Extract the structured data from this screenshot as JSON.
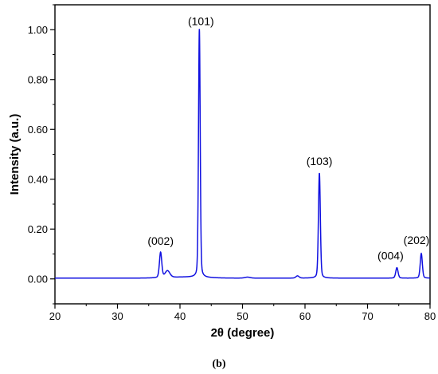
{
  "caption": "(b)",
  "chart_data": {
    "type": "line",
    "xlabel": "2θ (degree)",
    "ylabel": "Intensity (a.u.)",
    "xlim": [
      20,
      80
    ],
    "ylim": [
      -0.1,
      1.1
    ],
    "x_ticks": [
      20,
      30,
      40,
      50,
      60,
      70,
      80
    ],
    "x_tick_labels": [
      "20",
      "30",
      "40",
      "50",
      "60",
      "70",
      "80"
    ],
    "y_ticks": [
      0,
      0.2,
      0.4,
      0.6,
      0.8,
      1.0
    ],
    "y_tick_labels": [
      "0.00",
      "0.20",
      "0.40",
      "0.60",
      "0.80",
      "1.00"
    ],
    "grid": false,
    "legend": "none",
    "series_color": "#1010e0",
    "baseline": 0.003,
    "peaks": [
      {
        "x": 36.9,
        "y": 0.105,
        "label": "(002)"
      },
      {
        "x": 38.0,
        "y": 0.03,
        "label": ""
      },
      {
        "x": 43.1,
        "y": 1.0,
        "label": "(101)"
      },
      {
        "x": 50.8,
        "y": 0.007,
        "label": ""
      },
      {
        "x": 58.8,
        "y": 0.012,
        "label": ""
      },
      {
        "x": 62.3,
        "y": 0.425,
        "label": "(103)"
      },
      {
        "x": 74.7,
        "y": 0.045,
        "label": "(004)"
      },
      {
        "x": 78.6,
        "y": 0.102,
        "label": "(202)"
      }
    ]
  }
}
